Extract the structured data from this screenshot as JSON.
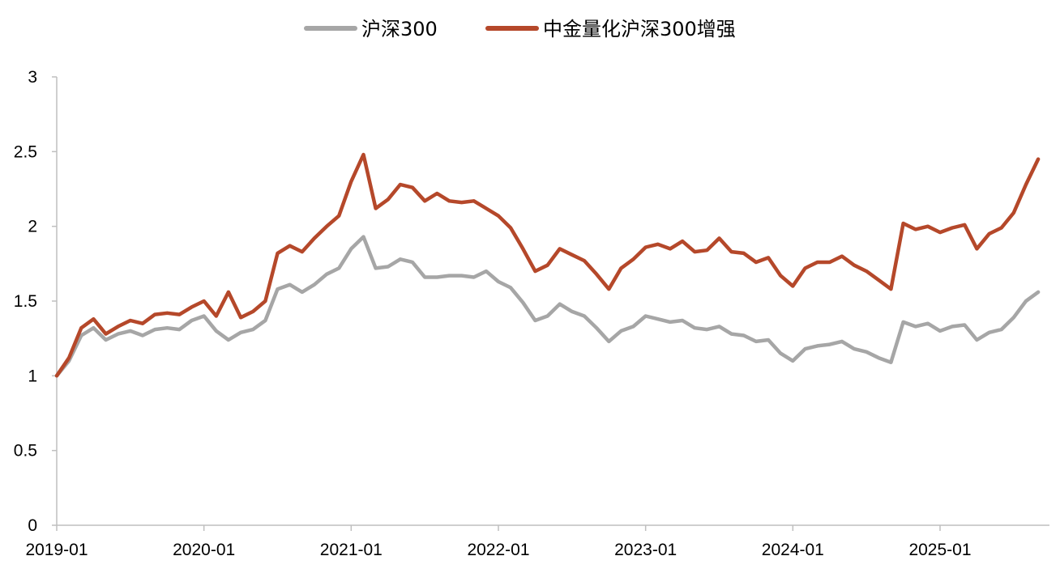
{
  "chart_data": {
    "type": "line",
    "title": "",
    "xlabel": "",
    "ylabel": "",
    "ylim": [
      0,
      3
    ],
    "y_ticks": [
      "0",
      "0.5",
      "1",
      "1.5",
      "2",
      "2.5",
      "3"
    ],
    "x_ticks": [
      "2019-01",
      "2020-01",
      "2021-01",
      "2022-01",
      "2023-01",
      "2024-01",
      "2025-01"
    ],
    "x_range": [
      "2019-01",
      "2025-09"
    ],
    "grid": false,
    "legend": "top-center",
    "series": [
      {
        "name": "沪深300",
        "color": "#a6a6a6",
        "points": [
          [
            "2019-01",
            1.0
          ],
          [
            "2019-02",
            1.1
          ],
          [
            "2019-03",
            1.27
          ],
          [
            "2019-04",
            1.32
          ],
          [
            "2019-05",
            1.24
          ],
          [
            "2019-06",
            1.28
          ],
          [
            "2019-07",
            1.3
          ],
          [
            "2019-08",
            1.27
          ],
          [
            "2019-09",
            1.31
          ],
          [
            "2019-10",
            1.32
          ],
          [
            "2019-11",
            1.31
          ],
          [
            "2019-12",
            1.37
          ],
          [
            "2020-01",
            1.4
          ],
          [
            "2020-02",
            1.3
          ],
          [
            "2020-03",
            1.24
          ],
          [
            "2020-04",
            1.29
          ],
          [
            "2020-05",
            1.31
          ],
          [
            "2020-06",
            1.37
          ],
          [
            "2020-07",
            1.58
          ],
          [
            "2020-08",
            1.61
          ],
          [
            "2020-09",
            1.56
          ],
          [
            "2020-10",
            1.61
          ],
          [
            "2020-11",
            1.68
          ],
          [
            "2020-12",
            1.72
          ],
          [
            "2021-01",
            1.85
          ],
          [
            "2021-02",
            1.93
          ],
          [
            "2021-03",
            1.72
          ],
          [
            "2021-04",
            1.73
          ],
          [
            "2021-05",
            1.78
          ],
          [
            "2021-06",
            1.76
          ],
          [
            "2021-07",
            1.66
          ],
          [
            "2021-08",
            1.66
          ],
          [
            "2021-09",
            1.67
          ],
          [
            "2021-10",
            1.67
          ],
          [
            "2021-11",
            1.66
          ],
          [
            "2021-12",
            1.7
          ],
          [
            "2022-01",
            1.63
          ],
          [
            "2022-02",
            1.59
          ],
          [
            "2022-03",
            1.49
          ],
          [
            "2022-04",
            1.37
          ],
          [
            "2022-05",
            1.4
          ],
          [
            "2022-06",
            1.48
          ],
          [
            "2022-07",
            1.43
          ],
          [
            "2022-08",
            1.4
          ],
          [
            "2022-09",
            1.32
          ],
          [
            "2022-10",
            1.23
          ],
          [
            "2022-11",
            1.3
          ],
          [
            "2022-12",
            1.33
          ],
          [
            "2023-01",
            1.4
          ],
          [
            "2023-02",
            1.38
          ],
          [
            "2023-03",
            1.36
          ],
          [
            "2023-04",
            1.37
          ],
          [
            "2023-05",
            1.32
          ],
          [
            "2023-06",
            1.31
          ],
          [
            "2023-07",
            1.33
          ],
          [
            "2023-08",
            1.28
          ],
          [
            "2023-09",
            1.27
          ],
          [
            "2023-10",
            1.23
          ],
          [
            "2023-11",
            1.24
          ],
          [
            "2023-12",
            1.15
          ],
          [
            "2024-01",
            1.1
          ],
          [
            "2024-02",
            1.18
          ],
          [
            "2024-03",
            1.2
          ],
          [
            "2024-04",
            1.21
          ],
          [
            "2024-05",
            1.23
          ],
          [
            "2024-06",
            1.18
          ],
          [
            "2024-07",
            1.16
          ],
          [
            "2024-08",
            1.12
          ],
          [
            "2024-09",
            1.09
          ],
          [
            "2024-10",
            1.36
          ],
          [
            "2024-11",
            1.33
          ],
          [
            "2024-12",
            1.35
          ],
          [
            "2025-01",
            1.3
          ],
          [
            "2025-02",
            1.33
          ],
          [
            "2025-03",
            1.34
          ],
          [
            "2025-04",
            1.24
          ],
          [
            "2025-05",
            1.29
          ],
          [
            "2025-06",
            1.31
          ],
          [
            "2025-07",
            1.39
          ],
          [
            "2025-08",
            1.5
          ],
          [
            "2025-09",
            1.56
          ]
        ]
      },
      {
        "name": "中金量化沪深300增强",
        "color": "#b5482a",
        "points": [
          [
            "2019-01",
            1.0
          ],
          [
            "2019-02",
            1.12
          ],
          [
            "2019-03",
            1.32
          ],
          [
            "2019-04",
            1.38
          ],
          [
            "2019-05",
            1.28
          ],
          [
            "2019-06",
            1.33
          ],
          [
            "2019-07",
            1.37
          ],
          [
            "2019-08",
            1.35
          ],
          [
            "2019-09",
            1.41
          ],
          [
            "2019-10",
            1.42
          ],
          [
            "2019-11",
            1.41
          ],
          [
            "2019-12",
            1.46
          ],
          [
            "2020-01",
            1.5
          ],
          [
            "2020-02",
            1.4
          ],
          [
            "2020-03",
            1.56
          ],
          [
            "2020-04",
            1.39
          ],
          [
            "2020-05",
            1.43
          ],
          [
            "2020-06",
            1.5
          ],
          [
            "2020-07",
            1.82
          ],
          [
            "2020-08",
            1.87
          ],
          [
            "2020-09",
            1.83
          ],
          [
            "2020-10",
            1.92
          ],
          [
            "2020-11",
            2.0
          ],
          [
            "2020-12",
            2.07
          ],
          [
            "2021-01",
            2.3
          ],
          [
            "2021-02",
            2.48
          ],
          [
            "2021-03",
            2.12
          ],
          [
            "2021-04",
            2.18
          ],
          [
            "2021-05",
            2.28
          ],
          [
            "2021-06",
            2.26
          ],
          [
            "2021-07",
            2.17
          ],
          [
            "2021-08",
            2.22
          ],
          [
            "2021-09",
            2.17
          ],
          [
            "2021-10",
            2.16
          ],
          [
            "2021-11",
            2.17
          ],
          [
            "2021-12",
            2.12
          ],
          [
            "2022-01",
            2.07
          ],
          [
            "2022-02",
            1.99
          ],
          [
            "2022-03",
            1.85
          ],
          [
            "2022-04",
            1.7
          ],
          [
            "2022-05",
            1.74
          ],
          [
            "2022-06",
            1.85
          ],
          [
            "2022-07",
            1.81
          ],
          [
            "2022-08",
            1.77
          ],
          [
            "2022-09",
            1.68
          ],
          [
            "2022-10",
            1.58
          ],
          [
            "2022-11",
            1.72
          ],
          [
            "2022-12",
            1.78
          ],
          [
            "2023-01",
            1.86
          ],
          [
            "2023-02",
            1.88
          ],
          [
            "2023-03",
            1.85
          ],
          [
            "2023-04",
            1.9
          ],
          [
            "2023-05",
            1.83
          ],
          [
            "2023-06",
            1.84
          ],
          [
            "2023-07",
            1.92
          ],
          [
            "2023-08",
            1.83
          ],
          [
            "2023-09",
            1.82
          ],
          [
            "2023-10",
            1.76
          ],
          [
            "2023-11",
            1.79
          ],
          [
            "2023-12",
            1.67
          ],
          [
            "2024-01",
            1.6
          ],
          [
            "2024-02",
            1.72
          ],
          [
            "2024-03",
            1.76
          ],
          [
            "2024-04",
            1.76
          ],
          [
            "2024-05",
            1.8
          ],
          [
            "2024-06",
            1.74
          ],
          [
            "2024-07",
            1.7
          ],
          [
            "2024-08",
            1.64
          ],
          [
            "2024-09",
            1.58
          ],
          [
            "2024-10",
            2.02
          ],
          [
            "2024-11",
            1.98
          ],
          [
            "2024-12",
            2.0
          ],
          [
            "2025-01",
            1.96
          ],
          [
            "2025-02",
            1.99
          ],
          [
            "2025-03",
            2.01
          ],
          [
            "2025-04",
            1.85
          ],
          [
            "2025-05",
            1.95
          ],
          [
            "2025-06",
            1.99
          ],
          [
            "2025-07",
            2.09
          ],
          [
            "2025-08",
            2.28
          ],
          [
            "2025-09",
            2.45
          ]
        ]
      }
    ]
  }
}
